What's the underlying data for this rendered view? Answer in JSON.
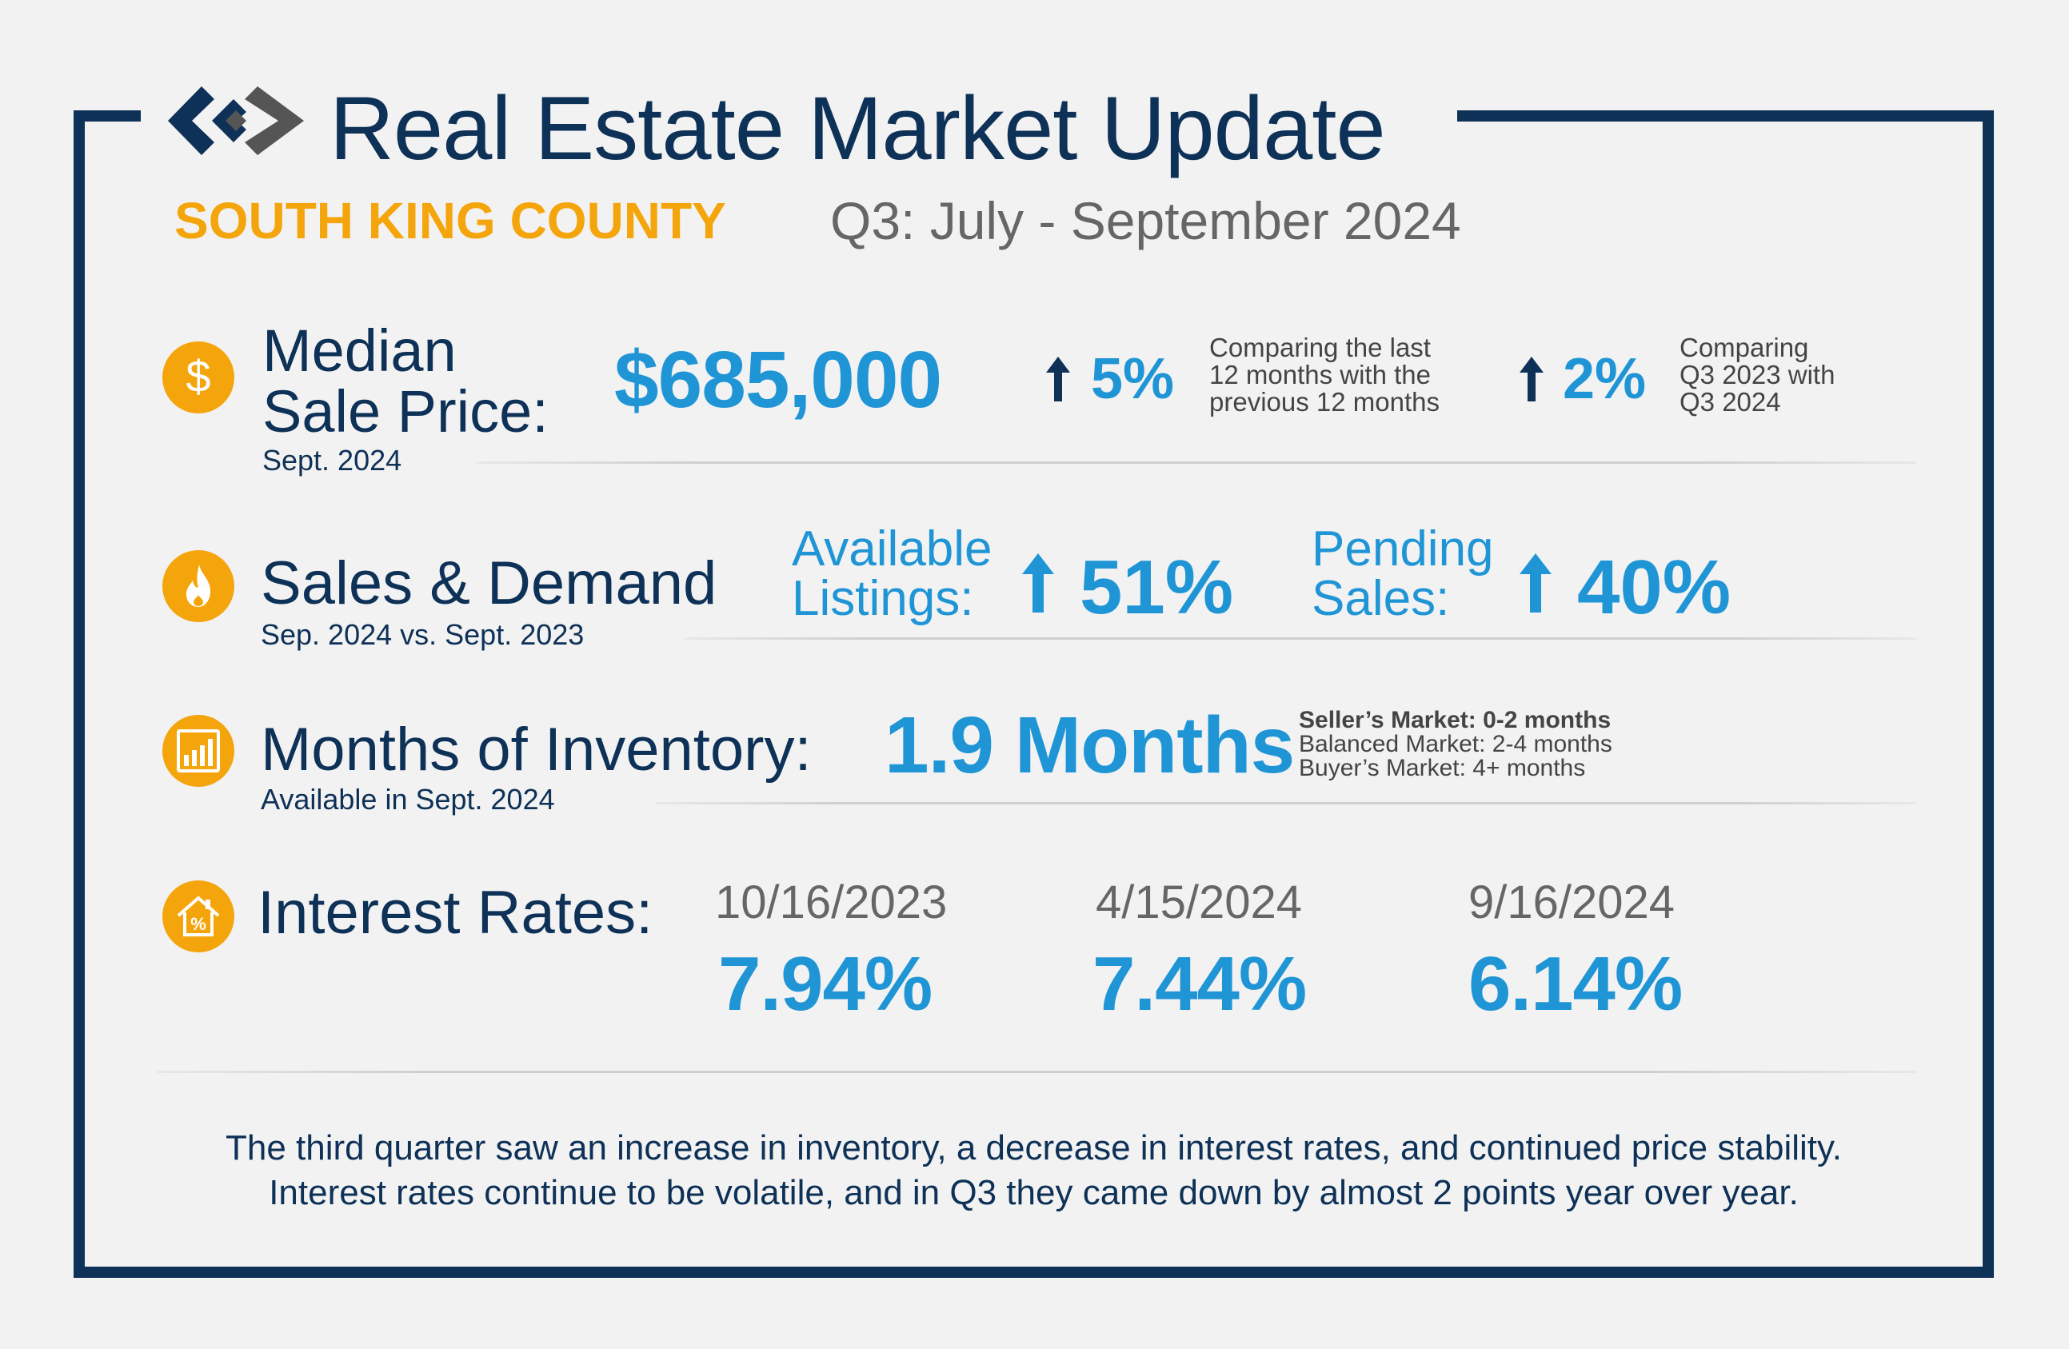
{
  "header": {
    "title": "Real Estate Market Update",
    "region": "SOUTH KING COUNTY",
    "period": "Q3: July - September 2024"
  },
  "median_sale_price": {
    "icon": "dollar-icon",
    "label_line1": "Median",
    "label_line2": "Sale Price:",
    "sublabel": "Sept. 2024",
    "value": "$685,000",
    "change1": "5%",
    "change1_note_line1": "Comparing the last",
    "change1_note_line2": "12 months with the",
    "change1_note_line3": "previous 12 months",
    "change2": "2%",
    "change2_note_line1": "Comparing",
    "change2_note_line2": "Q3 2023 with",
    "change2_note_line3": "Q3 2024"
  },
  "sales_demand": {
    "icon": "flame-icon",
    "label": "Sales & Demand",
    "sublabel": "Sep. 2024 vs. Sept. 2023",
    "listings_label_line1": "Available",
    "listings_label_line2": "Listings:",
    "listings_value": "51%",
    "pending_label_line1": "Pending",
    "pending_label_line2": "Sales:",
    "pending_value": "40%"
  },
  "inventory": {
    "icon": "bar-chart-icon",
    "label": "Months of Inventory:",
    "sublabel": "Available in Sept. 2024",
    "value": "1.9 Months",
    "note_sellers": "Seller’s Market: 0-2 months",
    "note_balanced": "Balanced Market: 2-4 months",
    "note_buyers": "Buyer’s Market: 4+ months"
  },
  "interest_rates": {
    "icon": "house-percent-icon",
    "label": "Interest Rates:",
    "items": [
      {
        "date": "10/16/2023",
        "rate": "7.94%"
      },
      {
        "date": "4/15/2024",
        "rate": "7.44%"
      },
      {
        "date": "9/16/2024",
        "rate": "6.14%"
      }
    ]
  },
  "summary": {
    "line1": "The third quarter saw an increase in inventory, a decrease in interest rates, and continued price stability.",
    "line2": "Interest rates continue to be volatile, and in Q3 they came down by almost 2 points year over year."
  },
  "colors": {
    "navy": "#0e3157",
    "accent_orange": "#f5a50c",
    "accent_blue": "#1f95d6",
    "gray": "#666666"
  }
}
